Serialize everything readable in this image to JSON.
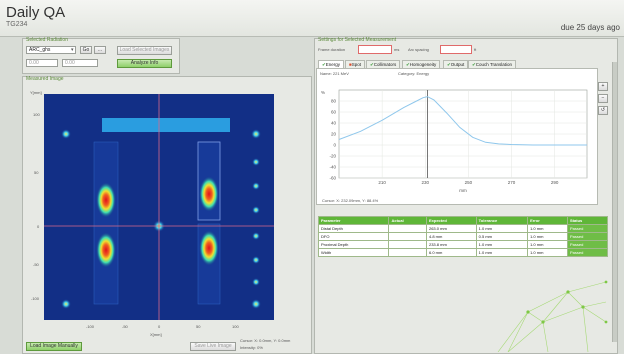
{
  "app": {
    "title": "Daily QA",
    "subtitle": "TG234",
    "due": "due 25 days ago"
  },
  "left_panel": {
    "section1_title": "Selected Radiation",
    "device_select": "ARC_ghs",
    "toolbar_btn1": "Go",
    "toolbar_btn2": "...",
    "field1": "0.00",
    "field2": "0.00",
    "btn_load": "Load Selected Images",
    "btn_analyze": "Analyze Info",
    "image_title": "Measured Image",
    "y_axis_label": "Y[mm]",
    "x_axis_label": "X[mm]",
    "x_ticks": [
      "-100",
      "-50",
      "0",
      "50",
      "100"
    ],
    "y_ticks": [
      "100",
      "50",
      "0",
      "-50",
      "-100"
    ],
    "btn_load_image": "Load Image Manually",
    "btn_save": "Save Live Image",
    "status1": "Cursor: X: 0.0mm, Y: 0.0mm",
    "status2": "Intensity: 0%"
  },
  "right_panel": {
    "section_title": "Settings for Selected Measurement",
    "frame_label": "Frame duration",
    "frame_unit": "ms",
    "spacing_label": "Arc spacing",
    "spacing_unit": "ft",
    "tabs": [
      "Energy",
      "Spot",
      "Collimators",
      "Homogeneity",
      "Output",
      "Couch Translation"
    ],
    "chart_name_label": "Name: 221 MeV",
    "chart_category_label": "Category: Energy",
    "cursor_text": "Cursor: X: 232.09mm, Y: 88.4%",
    "side_icons": [
      "zoom-in-icon",
      "zoom-out-icon",
      "reset-icon"
    ]
  },
  "chart_data": {
    "type": "line",
    "title": "",
    "xlabel": "mm",
    "ylabel": "%",
    "xlim": [
      190,
      305
    ],
    "ylim": [
      -60,
      100
    ],
    "x_ticks": [
      210,
      230,
      250,
      270,
      290
    ],
    "y_ticks": [
      80,
      60,
      40,
      20,
      0,
      -20,
      -40,
      -60
    ],
    "marker_x": 231,
    "series": [
      {
        "color": "#8fc7ec",
        "x": [
          190,
          200,
          210,
          220,
          226,
          229,
          231,
          234,
          240,
          246,
          252,
          258,
          264,
          270,
          280,
          290,
          300,
          305
        ],
        "y": [
          10,
          25,
          45,
          68,
          80,
          86,
          88,
          82,
          58,
          32,
          14,
          5,
          2,
          1,
          0,
          0,
          0,
          0
        ]
      }
    ]
  },
  "results_table": {
    "headers": [
      "Parameter",
      "Actual",
      "Expected",
      "Tolerance",
      "Error",
      "Status"
    ],
    "rows": [
      [
        "Distal Depth",
        "",
        "263.0 mm",
        "1.0 mm",
        "1.0 mm",
        "Passed"
      ],
      [
        "DFO",
        "",
        "4.8 mm",
        "0.5 mm",
        "1.0 mm",
        "Passed"
      ],
      [
        "Proximal Depth",
        "",
        "233.8 mm",
        "1.0 mm",
        "1.0 mm",
        "Passed"
      ],
      [
        "Width",
        "",
        "6.0 mm",
        "1.0 mm",
        "1.0 mm",
        "Passed"
      ]
    ]
  }
}
